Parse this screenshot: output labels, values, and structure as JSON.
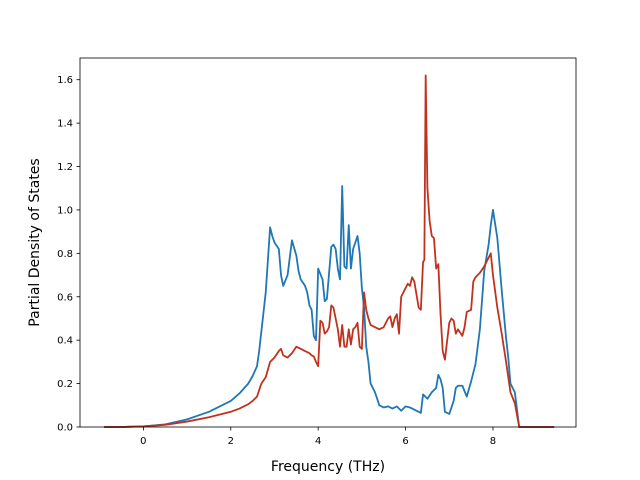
{
  "chart_data": {
    "type": "line",
    "title": "",
    "xlabel": "Frequency (THz)",
    "ylabel": "Partial Density of States",
    "xlim": [
      -1.45,
      9.9
    ],
    "ylim": [
      0,
      1.7
    ],
    "xticks": [
      0,
      2,
      4,
      6,
      8
    ],
    "yticks": [
      0.0,
      0.2,
      0.4,
      0.6,
      0.8,
      1.0,
      1.2,
      1.4,
      1.6
    ],
    "ytick_labels": [
      "0.0",
      "0.2",
      "0.4",
      "0.6",
      "0.8",
      "1.0",
      "1.2",
      "1.4",
      "1.6"
    ],
    "grid": false,
    "legend": "none",
    "series": [
      {
        "color": "#1f77b4",
        "x": [
          -0.9,
          -0.5,
          0.0,
          0.5,
          1.0,
          1.5,
          2.0,
          2.2,
          2.4,
          2.5,
          2.6,
          2.65,
          2.7,
          2.8,
          2.9,
          2.95,
          3.0,
          3.1,
          3.15,
          3.2,
          3.3,
          3.4,
          3.5,
          3.55,
          3.6,
          3.7,
          3.75,
          3.8,
          3.85,
          3.9,
          3.95,
          4.0,
          4.1,
          4.15,
          4.2,
          4.3,
          4.35,
          4.4,
          4.45,
          4.5,
          4.55,
          4.6,
          4.65,
          4.7,
          4.75,
          4.8,
          4.85,
          4.9,
          4.95,
          5.0,
          5.05,
          5.1,
          5.15,
          5.2,
          5.3,
          5.4,
          5.5,
          5.6,
          5.7,
          5.8,
          5.9,
          6.0,
          6.1,
          6.2,
          6.3,
          6.35,
          6.4,
          6.5,
          6.6,
          6.7,
          6.75,
          6.8,
          6.85,
          6.9,
          7.0,
          7.1,
          7.15,
          7.2,
          7.3,
          7.4,
          7.5,
          7.6,
          7.7,
          7.8,
          7.9,
          7.95,
          8.0,
          8.1,
          8.2,
          8.3,
          8.35,
          8.4,
          8.5,
          8.6,
          9.0,
          9.4
        ],
        "y": [
          0.0,
          0.0,
          0.003,
          0.012,
          0.035,
          0.07,
          0.12,
          0.155,
          0.2,
          0.235,
          0.28,
          0.35,
          0.44,
          0.62,
          0.92,
          0.88,
          0.85,
          0.82,
          0.7,
          0.65,
          0.7,
          0.86,
          0.79,
          0.72,
          0.68,
          0.65,
          0.62,
          0.56,
          0.54,
          0.42,
          0.4,
          0.73,
          0.68,
          0.58,
          0.59,
          0.83,
          0.84,
          0.82,
          0.73,
          0.68,
          1.11,
          0.74,
          0.73,
          0.93,
          0.73,
          0.82,
          0.85,
          0.88,
          0.8,
          0.64,
          0.55,
          0.37,
          0.3,
          0.2,
          0.16,
          0.1,
          0.09,
          0.095,
          0.085,
          0.095,
          0.075,
          0.095,
          0.09,
          0.08,
          0.07,
          0.065,
          0.15,
          0.13,
          0.16,
          0.18,
          0.24,
          0.22,
          0.18,
          0.07,
          0.06,
          0.12,
          0.18,
          0.19,
          0.19,
          0.14,
          0.21,
          0.29,
          0.45,
          0.72,
          0.84,
          0.93,
          1.0,
          0.87,
          0.63,
          0.41,
          0.32,
          0.2,
          0.16,
          0.0,
          0.0,
          0.0
        ]
      },
      {
        "color": "#c0321e",
        "x": [
          -0.9,
          -0.5,
          0.0,
          0.5,
          1.0,
          1.5,
          2.0,
          2.2,
          2.4,
          2.5,
          2.6,
          2.65,
          2.7,
          2.8,
          2.9,
          2.95,
          3.0,
          3.1,
          3.15,
          3.2,
          3.3,
          3.4,
          3.5,
          3.6,
          3.7,
          3.8,
          3.85,
          3.9,
          3.95,
          4.0,
          4.05,
          4.1,
          4.15,
          4.2,
          4.25,
          4.3,
          4.35,
          4.4,
          4.45,
          4.5,
          4.55,
          4.6,
          4.65,
          4.7,
          4.75,
          4.8,
          4.85,
          4.9,
          4.95,
          5.0,
          5.05,
          5.1,
          5.15,
          5.2,
          5.3,
          5.4,
          5.5,
          5.6,
          5.65,
          5.7,
          5.75,
          5.8,
          5.85,
          5.9,
          6.0,
          6.05,
          6.1,
          6.15,
          6.2,
          6.3,
          6.35,
          6.4,
          6.43,
          6.46,
          6.5,
          6.55,
          6.6,
          6.65,
          6.7,
          6.75,
          6.8,
          6.85,
          6.9,
          7.0,
          7.05,
          7.1,
          7.15,
          7.2,
          7.3,
          7.35,
          7.4,
          7.5,
          7.55,
          7.6,
          7.7,
          7.8,
          7.9,
          7.95,
          8.0,
          8.1,
          8.2,
          8.3,
          8.4,
          8.5,
          8.6,
          9.0,
          9.4
        ],
        "y": [
          0.0,
          0.0,
          0.003,
          0.01,
          0.025,
          0.045,
          0.07,
          0.085,
          0.105,
          0.12,
          0.14,
          0.17,
          0.2,
          0.23,
          0.3,
          0.31,
          0.32,
          0.35,
          0.36,
          0.33,
          0.32,
          0.34,
          0.37,
          0.36,
          0.35,
          0.34,
          0.33,
          0.325,
          0.3,
          0.28,
          0.49,
          0.48,
          0.43,
          0.44,
          0.46,
          0.56,
          0.55,
          0.5,
          0.45,
          0.37,
          0.47,
          0.37,
          0.37,
          0.45,
          0.38,
          0.45,
          0.46,
          0.48,
          0.37,
          0.36,
          0.62,
          0.54,
          0.5,
          0.47,
          0.46,
          0.45,
          0.46,
          0.5,
          0.51,
          0.46,
          0.5,
          0.52,
          0.43,
          0.6,
          0.64,
          0.66,
          0.65,
          0.69,
          0.67,
          0.55,
          0.54,
          0.76,
          0.77,
          1.62,
          1.1,
          0.95,
          0.88,
          0.87,
          0.73,
          0.75,
          0.52,
          0.35,
          0.31,
          0.48,
          0.5,
          0.49,
          0.43,
          0.45,
          0.42,
          0.46,
          0.53,
          0.54,
          0.67,
          0.69,
          0.71,
          0.74,
          0.78,
          0.8,
          0.7,
          0.55,
          0.43,
          0.3,
          0.16,
          0.11,
          0.0,
          0.0,
          0.0
        ]
      }
    ]
  }
}
